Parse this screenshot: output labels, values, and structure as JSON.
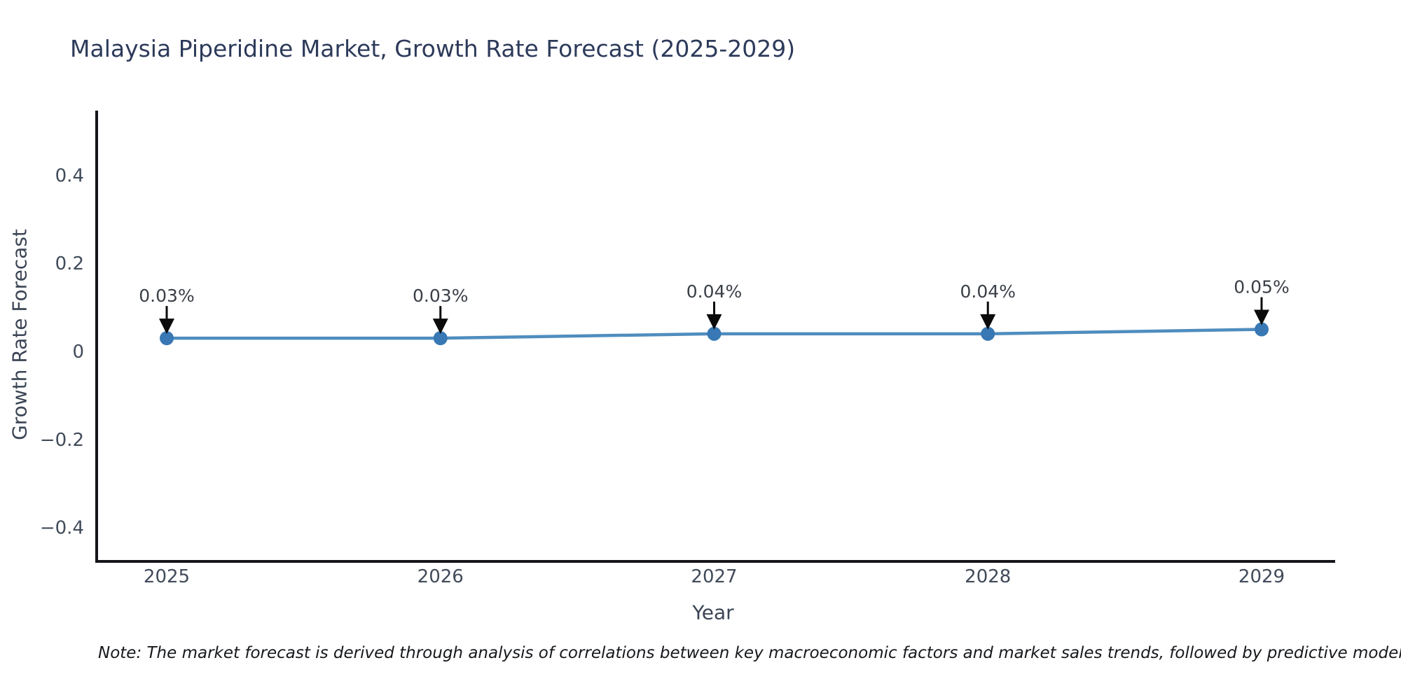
{
  "note": "Note: The market forecast is derived through analysis of correlations between key macroeconomic factors and market sales trends, followed by predictive modeling to project future sa",
  "colors": {
    "title": "#2d3a5a",
    "tick_label": "#414b5a",
    "axis_label": "#3b4554",
    "annotation": "#3a3f47",
    "spine": "#14161a",
    "line": "#4f8dbe",
    "marker": "#3878b4",
    "arrow": "#0b0b0b",
    "background": "#ffffff"
  },
  "chart_data": {
    "type": "line",
    "title": "Malaysia Piperidine Market, Growth Rate Forecast (2025-2029)",
    "xlabel": "Year",
    "ylabel": "Growth Rate Forecast",
    "categories": [
      2025,
      2026,
      2027,
      2028,
      2029
    ],
    "values": [
      0.03,
      0.03,
      0.04,
      0.04,
      0.05
    ],
    "point_labels": [
      "0.03%",
      "0.03%",
      "0.04%",
      "0.04%",
      "0.05%"
    ],
    "yticks": [
      0.4,
      0.2,
      0,
      -0.2,
      -0.4
    ],
    "ylim": [
      -0.48,
      0.55
    ],
    "xlim_categories": [
      "2025",
      "2029"
    ],
    "grid": false,
    "legend": "none",
    "marker_shape": "circle",
    "annotation_arrow": "down-arrow"
  }
}
